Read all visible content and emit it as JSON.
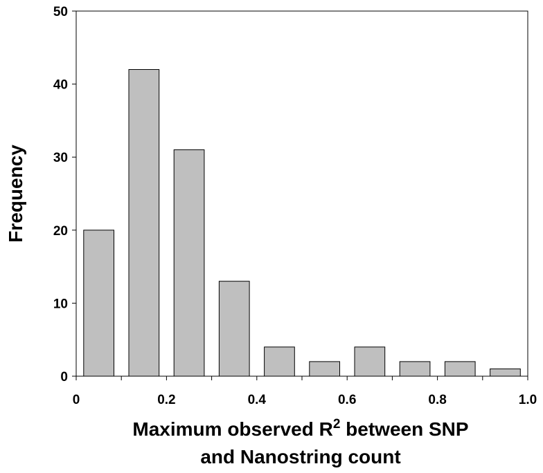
{
  "chart_data": {
    "type": "bar",
    "title": "",
    "xlabel_line1_prefix": "Maximum observed R",
    "xlabel_superscript": "2",
    "xlabel_line1_suffix": " between SNP",
    "xlabel_line2": "and Nanostring count",
    "ylabel": "Frequency",
    "bin_edges": [
      0,
      0.1,
      0.2,
      0.3,
      0.4,
      0.5,
      0.6,
      0.7,
      0.8,
      0.9,
      1.0
    ],
    "values": [
      20,
      42,
      31,
      13,
      4,
      2,
      4,
      2,
      2,
      1
    ],
    "xlim": [
      0,
      1.0
    ],
    "ylim": [
      0,
      50
    ],
    "x_ticks": [
      0,
      0.2,
      0.4,
      0.6,
      0.8,
      1.0
    ],
    "x_tick_labels": [
      "0",
      "0.2",
      "0.4",
      "0.6",
      "0.8",
      "1.0"
    ],
    "y_ticks": [
      0,
      10,
      20,
      30,
      40,
      50
    ],
    "y_tick_labels": [
      "0",
      "10",
      "20",
      "30",
      "40",
      "50"
    ],
    "bar_color": "#bfbfbf",
    "bar_edge_color": "#000000",
    "grid": false,
    "legend": "none"
  }
}
